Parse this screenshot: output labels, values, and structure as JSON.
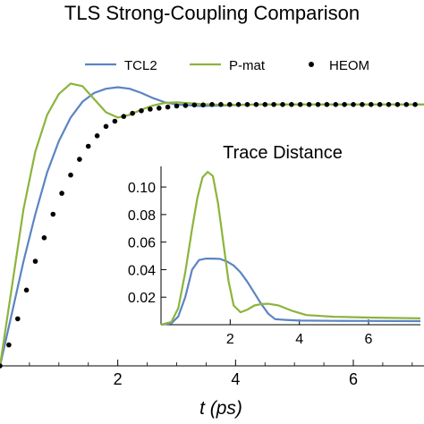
{
  "chart_data": [
    {
      "type": "line",
      "title": "TLS Strong-Coupling Comparison",
      "xlabel": "t (ps)",
      "ylabel": "",
      "xlim": [
        0,
        7.2
      ],
      "ylim": [
        0.5,
        1.08
      ],
      "x_ticks": [
        "2",
        "4",
        "6"
      ],
      "x_tick_values": [
        2,
        4,
        6
      ],
      "legend": {
        "placement": "top"
      },
      "series": [
        {
          "name": "TCL2",
          "style": "line",
          "color": "#5b84c4",
          "x": [
            0,
            0.2,
            0.4,
            0.6,
            0.8,
            1.0,
            1.2,
            1.4,
            1.6,
            1.8,
            2.0,
            2.2,
            2.4,
            2.6,
            2.8,
            3.0,
            3.4,
            3.8,
            4.4,
            5.0,
            6.0,
            7.2
          ],
          "y": [
            0.5,
            0.6,
            0.7,
            0.79,
            0.87,
            0.93,
            0.975,
            1.005,
            1.022,
            1.03,
            1.033,
            1.03,
            1.022,
            1.012,
            1.004,
            1.0,
            0.997,
            0.998,
            1.0,
            1.0,
            1.0,
            1.0
          ]
        },
        {
          "name": "P-mat",
          "style": "line",
          "color": "#8cb43c",
          "x": [
            0,
            0.2,
            0.4,
            0.6,
            0.8,
            1.0,
            1.2,
            1.4,
            1.6,
            1.8,
            2.0,
            2.2,
            2.4,
            2.6,
            2.8,
            3.0,
            3.4,
            3.8,
            4.4,
            5.0,
            6.0,
            7.2
          ],
          "y": [
            0.5,
            0.65,
            0.8,
            0.91,
            0.98,
            1.02,
            1.04,
            1.035,
            1.01,
            0.985,
            0.975,
            0.98,
            0.99,
            0.998,
            1.003,
            1.004,
            1.001,
            0.999,
            1.0,
            1.0,
            1.0,
            1.0
          ]
        },
        {
          "name": "HEOM",
          "style": "points",
          "color": "#000000",
          "x": [
            0,
            0.15,
            0.3,
            0.45,
            0.6,
            0.75,
            0.9,
            1.05,
            1.2,
            1.35,
            1.5,
            1.65,
            1.8,
            1.95,
            2.1,
            2.25,
            2.4,
            2.55,
            2.7,
            2.85,
            3.0,
            3.15,
            3.3,
            3.45,
            3.6,
            3.75,
            3.9,
            4.05,
            4.2,
            4.35,
            4.5,
            4.65,
            4.8,
            4.95,
            5.1,
            5.25,
            5.4,
            5.55,
            5.7,
            5.85,
            6.0,
            6.15,
            6.3,
            6.45,
            6.6,
            6.75,
            6.9,
            7.05
          ],
          "y": [
            0.5,
            0.54,
            0.59,
            0.645,
            0.7,
            0.745,
            0.79,
            0.83,
            0.865,
            0.895,
            0.92,
            0.94,
            0.958,
            0.968,
            0.977,
            0.983,
            0.988,
            0.991,
            0.993,
            0.995,
            0.997,
            0.998,
            0.999,
            0.999,
            1.0,
            1.0,
            1.0,
            1.0,
            1.0,
            1.0,
            1.0,
            1.0,
            1.0,
            1.0,
            1.0,
            1.0,
            1.0,
            1.0,
            1.0,
            1.0,
            1.0,
            1.0,
            1.0,
            1.0,
            1.0,
            1.0,
            1.0,
            1.0
          ]
        }
      ]
    },
    {
      "type": "line",
      "title": "Trace Distance",
      "xlabel": "",
      "ylabel": "",
      "xlim": [
        0,
        7.5
      ],
      "ylim": [
        0,
        0.115
      ],
      "x_ticks": [
        "2",
        "4",
        "6"
      ],
      "x_tick_values": [
        2,
        4,
        6
      ],
      "y_ticks": [
        "0.02",
        "0.04",
        "0.06",
        "0.08",
        "0.10"
      ],
      "y_tick_values": [
        0.02,
        0.04,
        0.06,
        0.08,
        0.1
      ],
      "series": [
        {
          "name": "TCL2",
          "style": "line",
          "color": "#5b84c4",
          "x": [
            0,
            0.3,
            0.5,
            0.7,
            0.9,
            1.1,
            1.3,
            1.5,
            1.7,
            1.9,
            2.1,
            2.3,
            2.5,
            2.7,
            2.9,
            3.1,
            3.3,
            3.6,
            4.0,
            5.0,
            6.0,
            7.5
          ],
          "y": [
            0,
            0.001,
            0.006,
            0.02,
            0.04,
            0.047,
            0.048,
            0.048,
            0.0478,
            0.046,
            0.043,
            0.038,
            0.031,
            0.023,
            0.015,
            0.008,
            0.004,
            0.0035,
            0.003,
            0.0028,
            0.0027,
            0.0026
          ]
        },
        {
          "name": "P-mat",
          "style": "line",
          "color": "#8cb43c",
          "x": [
            0,
            0.3,
            0.5,
            0.7,
            0.9,
            1.05,
            1.2,
            1.35,
            1.5,
            1.65,
            1.8,
            1.95,
            2.1,
            2.3,
            2.5,
            2.7,
            2.9,
            3.1,
            3.4,
            3.8,
            4.2,
            5.0,
            6.0,
            7.5
          ],
          "y": [
            0,
            0.002,
            0.012,
            0.038,
            0.07,
            0.092,
            0.107,
            0.111,
            0.108,
            0.088,
            0.06,
            0.032,
            0.014,
            0.009,
            0.011,
            0.014,
            0.015,
            0.0152,
            0.014,
            0.01,
            0.007,
            0.0058,
            0.0052,
            0.0046
          ]
        }
      ]
    }
  ]
}
